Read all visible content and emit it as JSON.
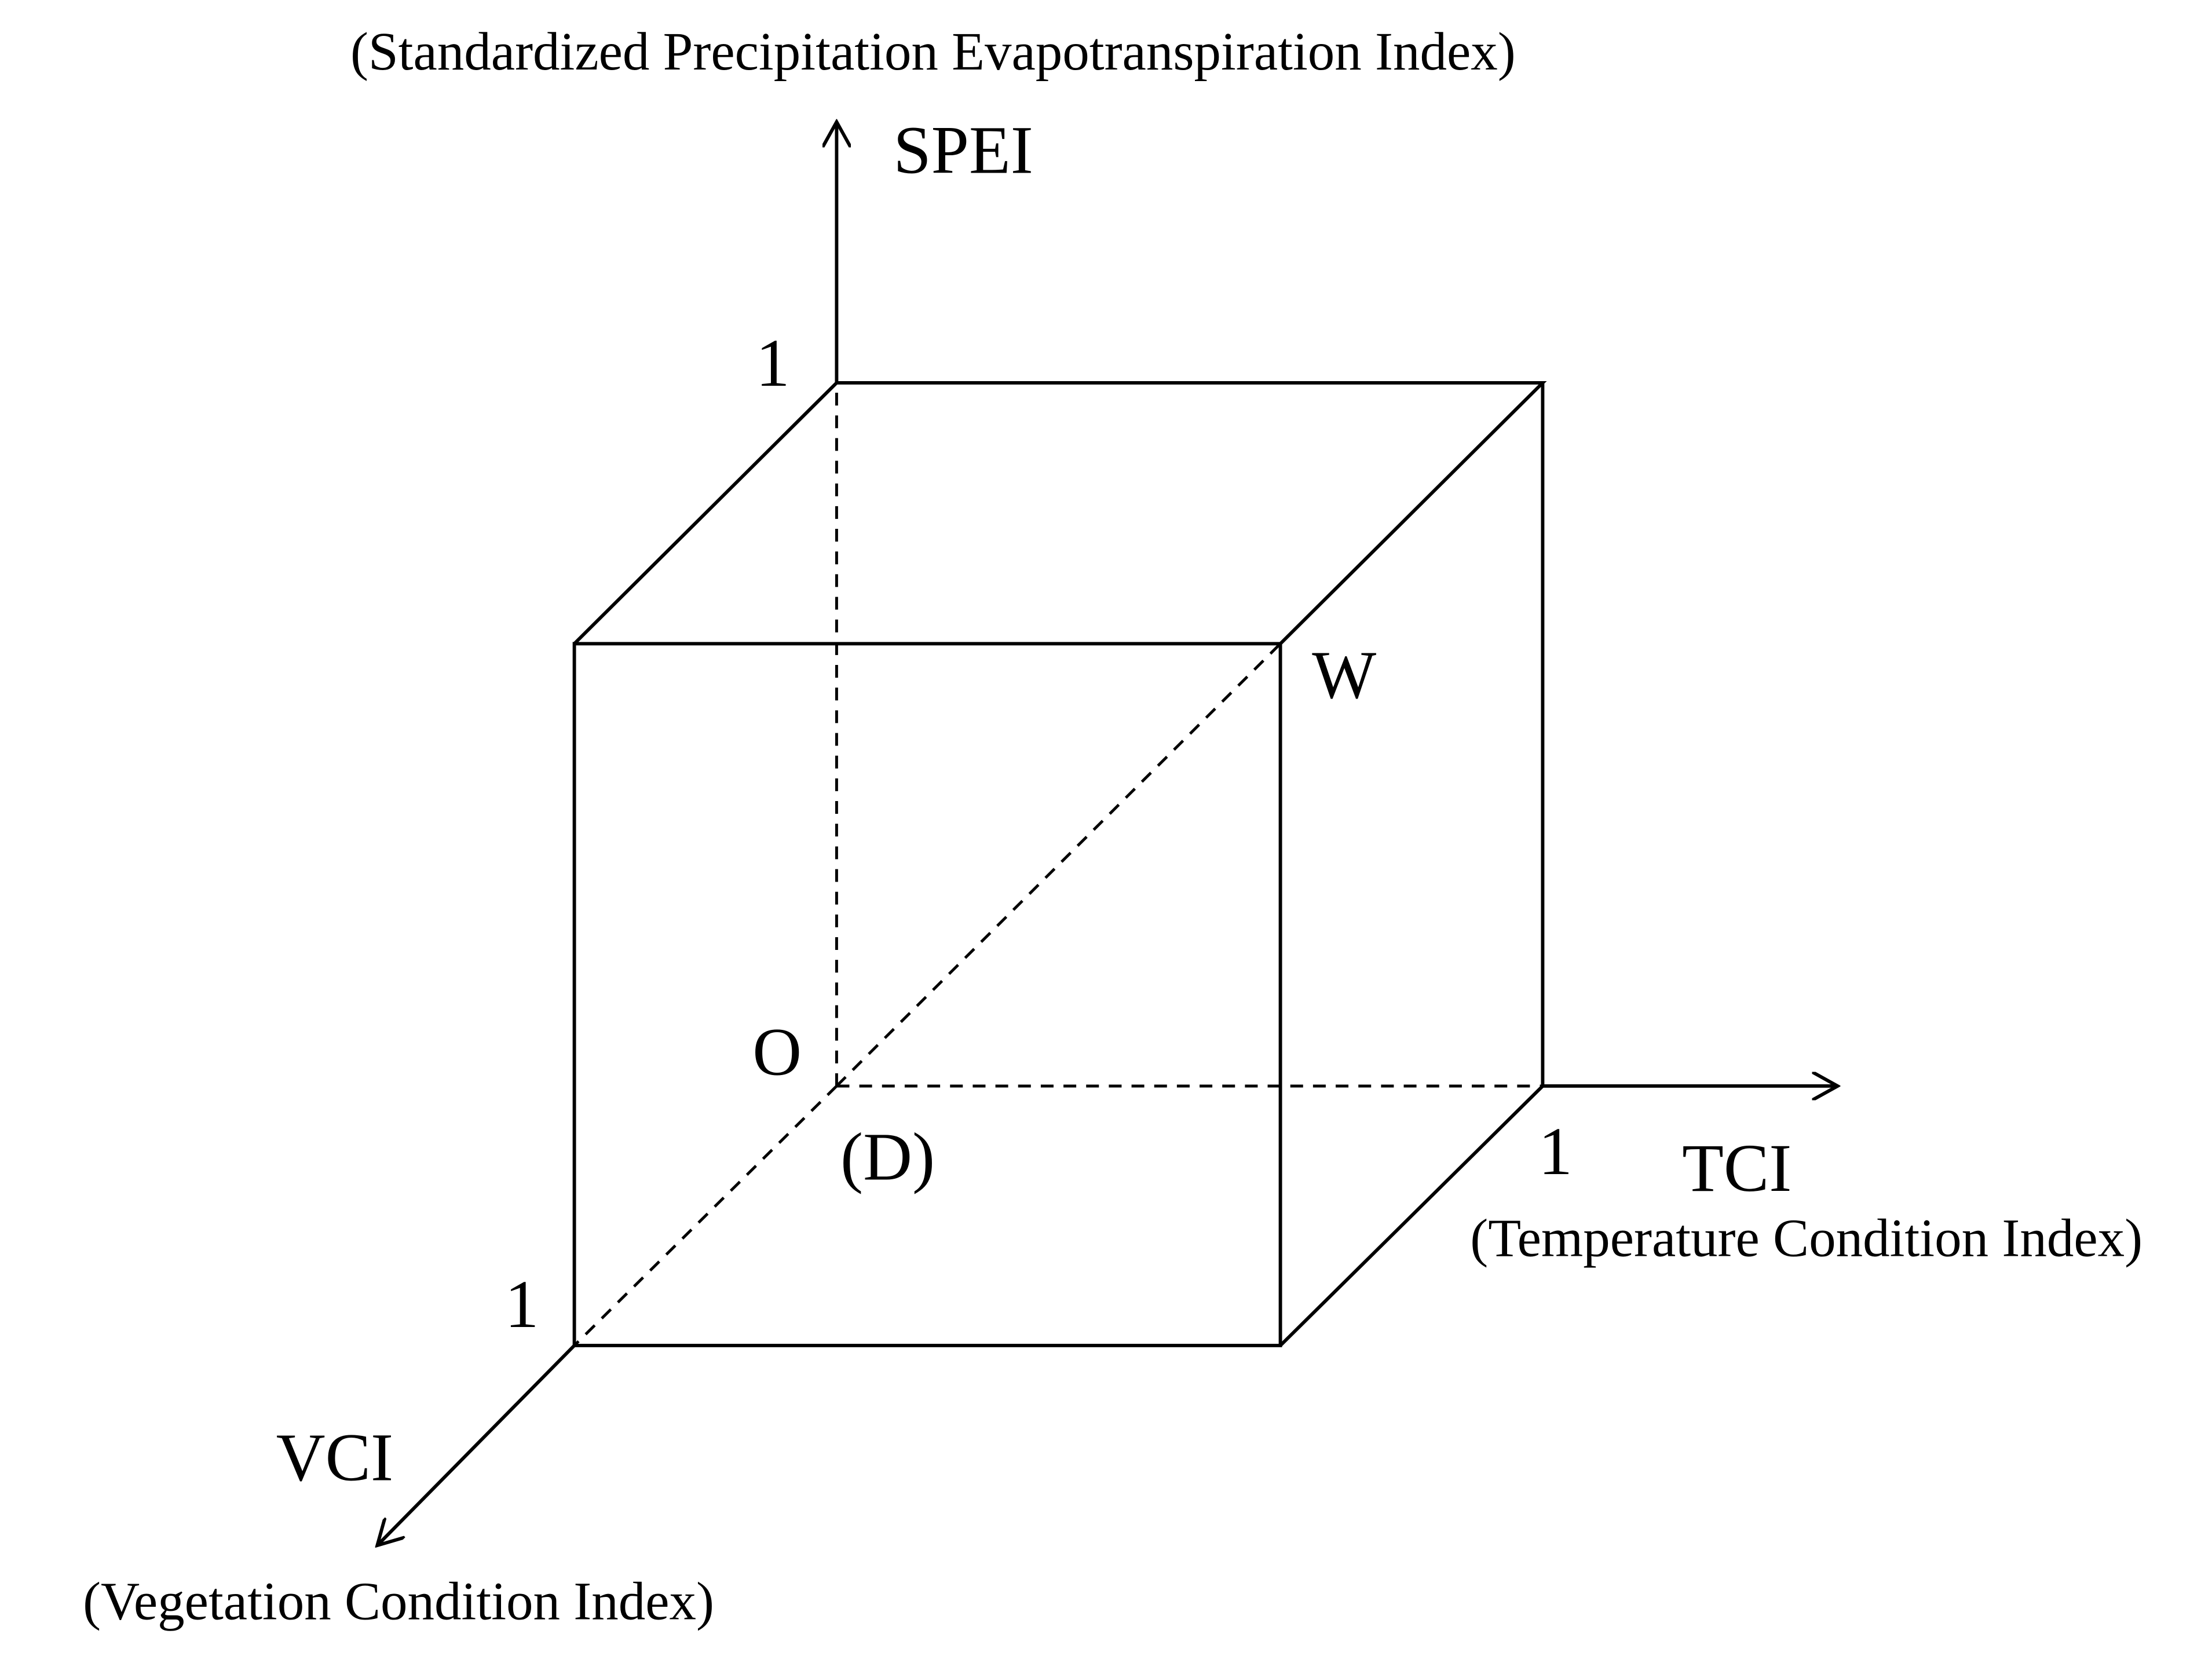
{
  "axes": {
    "spei": {
      "label": "SPEI",
      "full_name": "(Standardized Precipitation Evapotranspiration Index)",
      "tick": "1"
    },
    "tci": {
      "label": "TCI",
      "full_name": "(Temperature Condition Index)",
      "tick": "1"
    },
    "vci": {
      "label": "VCI",
      "full_name": "(Vegetation Condition Index)",
      "tick": "1"
    }
  },
  "points": {
    "origin": "O",
    "origin_note": "(D)",
    "corner": "W"
  }
}
